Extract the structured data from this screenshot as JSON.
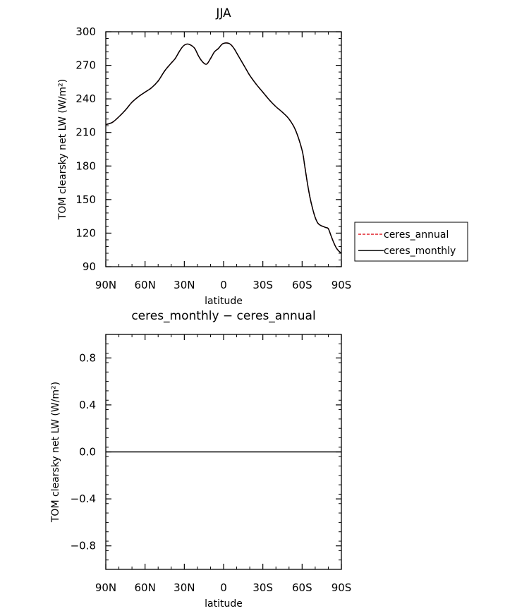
{
  "chart_data": [
    {
      "type": "line",
      "title": "JJA",
      "xlabel": "latitude",
      "ylabel": "TOM clearsky net LW (W/m²)",
      "x_ticks": [
        {
          "value": 90,
          "label": "90N"
        },
        {
          "value": 60,
          "label": "60N"
        },
        {
          "value": 30,
          "label": "30N"
        },
        {
          "value": 0,
          "label": "0"
        },
        {
          "value": -30,
          "label": "30S"
        },
        {
          "value": -60,
          "label": "60S"
        },
        {
          "value": -90,
          "label": "90S"
        }
      ],
      "xlim": [
        90,
        -90
      ],
      "ylim": [
        90,
        300
      ],
      "y_ticks": [
        {
          "value": 90,
          "label": "90"
        },
        {
          "value": 120,
          "label": "120"
        },
        {
          "value": 150,
          "label": "150"
        },
        {
          "value": 180,
          "label": "180"
        },
        {
          "value": 210,
          "label": "210"
        },
        {
          "value": 240,
          "label": "240"
        },
        {
          "value": 270,
          "label": "270"
        },
        {
          "value": 300,
          "label": "300"
        }
      ],
      "legend": "right",
      "series": [
        {
          "name": "ceres_annual",
          "color": "#e0202a",
          "style": "dashed",
          "x": [
            90,
            85,
            80,
            75,
            70,
            65,
            60,
            55,
            50,
            45,
            40,
            37,
            34,
            31,
            28,
            25,
            22,
            19,
            16,
            13,
            10,
            7,
            4,
            1,
            -2,
            -5,
            -8,
            -11,
            -14,
            -17,
            -20,
            -25,
            -30,
            -35,
            -40,
            -45,
            -50,
            -55,
            -60,
            -62,
            -64,
            -66,
            -68,
            -70,
            -72,
            -74,
            -76,
            -78,
            -80,
            -82,
            -84,
            -86,
            -88,
            -90
          ],
          "y": [
            217,
            219,
            224,
            230,
            237,
            242,
            246,
            250,
            256,
            265,
            272,
            276,
            282,
            287,
            289,
            288,
            285,
            278,
            273,
            271,
            276,
            282,
            285,
            289,
            290,
            289,
            285,
            279,
            273,
            267,
            261,
            253,
            246,
            239,
            233,
            228,
            222,
            212,
            194,
            180,
            165,
            152,
            142,
            134,
            129,
            127,
            126,
            125,
            124,
            118,
            112,
            107,
            104,
            102
          ]
        },
        {
          "name": "ceres_monthly",
          "color": "#000000",
          "style": "solid",
          "x": [
            90,
            85,
            80,
            75,
            70,
            65,
            60,
            55,
            50,
            45,
            40,
            37,
            34,
            31,
            28,
            25,
            22,
            19,
            16,
            13,
            10,
            7,
            4,
            1,
            -2,
            -5,
            -8,
            -11,
            -14,
            -17,
            -20,
            -25,
            -30,
            -35,
            -40,
            -45,
            -50,
            -55,
            -60,
            -62,
            -64,
            -66,
            -68,
            -70,
            -72,
            -74,
            -76,
            -78,
            -80,
            -82,
            -84,
            -86,
            -88,
            -90
          ],
          "y": [
            217,
            219,
            224,
            230,
            237,
            242,
            246,
            250,
            256,
            265,
            272,
            276,
            282,
            287,
            289,
            288,
            285,
            278,
            273,
            271,
            276,
            282,
            285,
            289,
            290,
            289,
            285,
            279,
            273,
            267,
            261,
            253,
            246,
            239,
            233,
            228,
            222,
            212,
            194,
            180,
            165,
            152,
            142,
            134,
            129,
            127,
            126,
            125,
            124,
            118,
            112,
            107,
            104,
            102
          ]
        }
      ]
    },
    {
      "type": "line",
      "title": "ceres_monthly − ceres_annual",
      "xlabel": "latitude",
      "ylabel": "TOM clearsky net LW (W/m²)",
      "x_ticks": [
        {
          "value": 90,
          "label": "90N"
        },
        {
          "value": 60,
          "label": "60N"
        },
        {
          "value": 30,
          "label": "30N"
        },
        {
          "value": 0,
          "label": "0"
        },
        {
          "value": -30,
          "label": "30S"
        },
        {
          "value": -60,
          "label": "60S"
        },
        {
          "value": -90,
          "label": "90S"
        }
      ],
      "xlim": [
        90,
        -90
      ],
      "ylim": [
        -1.0,
        1.0
      ],
      "y_ticks": [
        {
          "value": -0.8,
          "label": "−0.8"
        },
        {
          "value": -0.4,
          "label": "−0.4"
        },
        {
          "value": 0.0,
          "label": "0.0"
        },
        {
          "value": 0.4,
          "label": "0.4"
        },
        {
          "value": 0.8,
          "label": "0.8"
        }
      ],
      "series": [
        {
          "color": "#000000",
          "style": "solid",
          "x": [
            90,
            -90
          ],
          "y": [
            0,
            0
          ]
        }
      ]
    }
  ]
}
